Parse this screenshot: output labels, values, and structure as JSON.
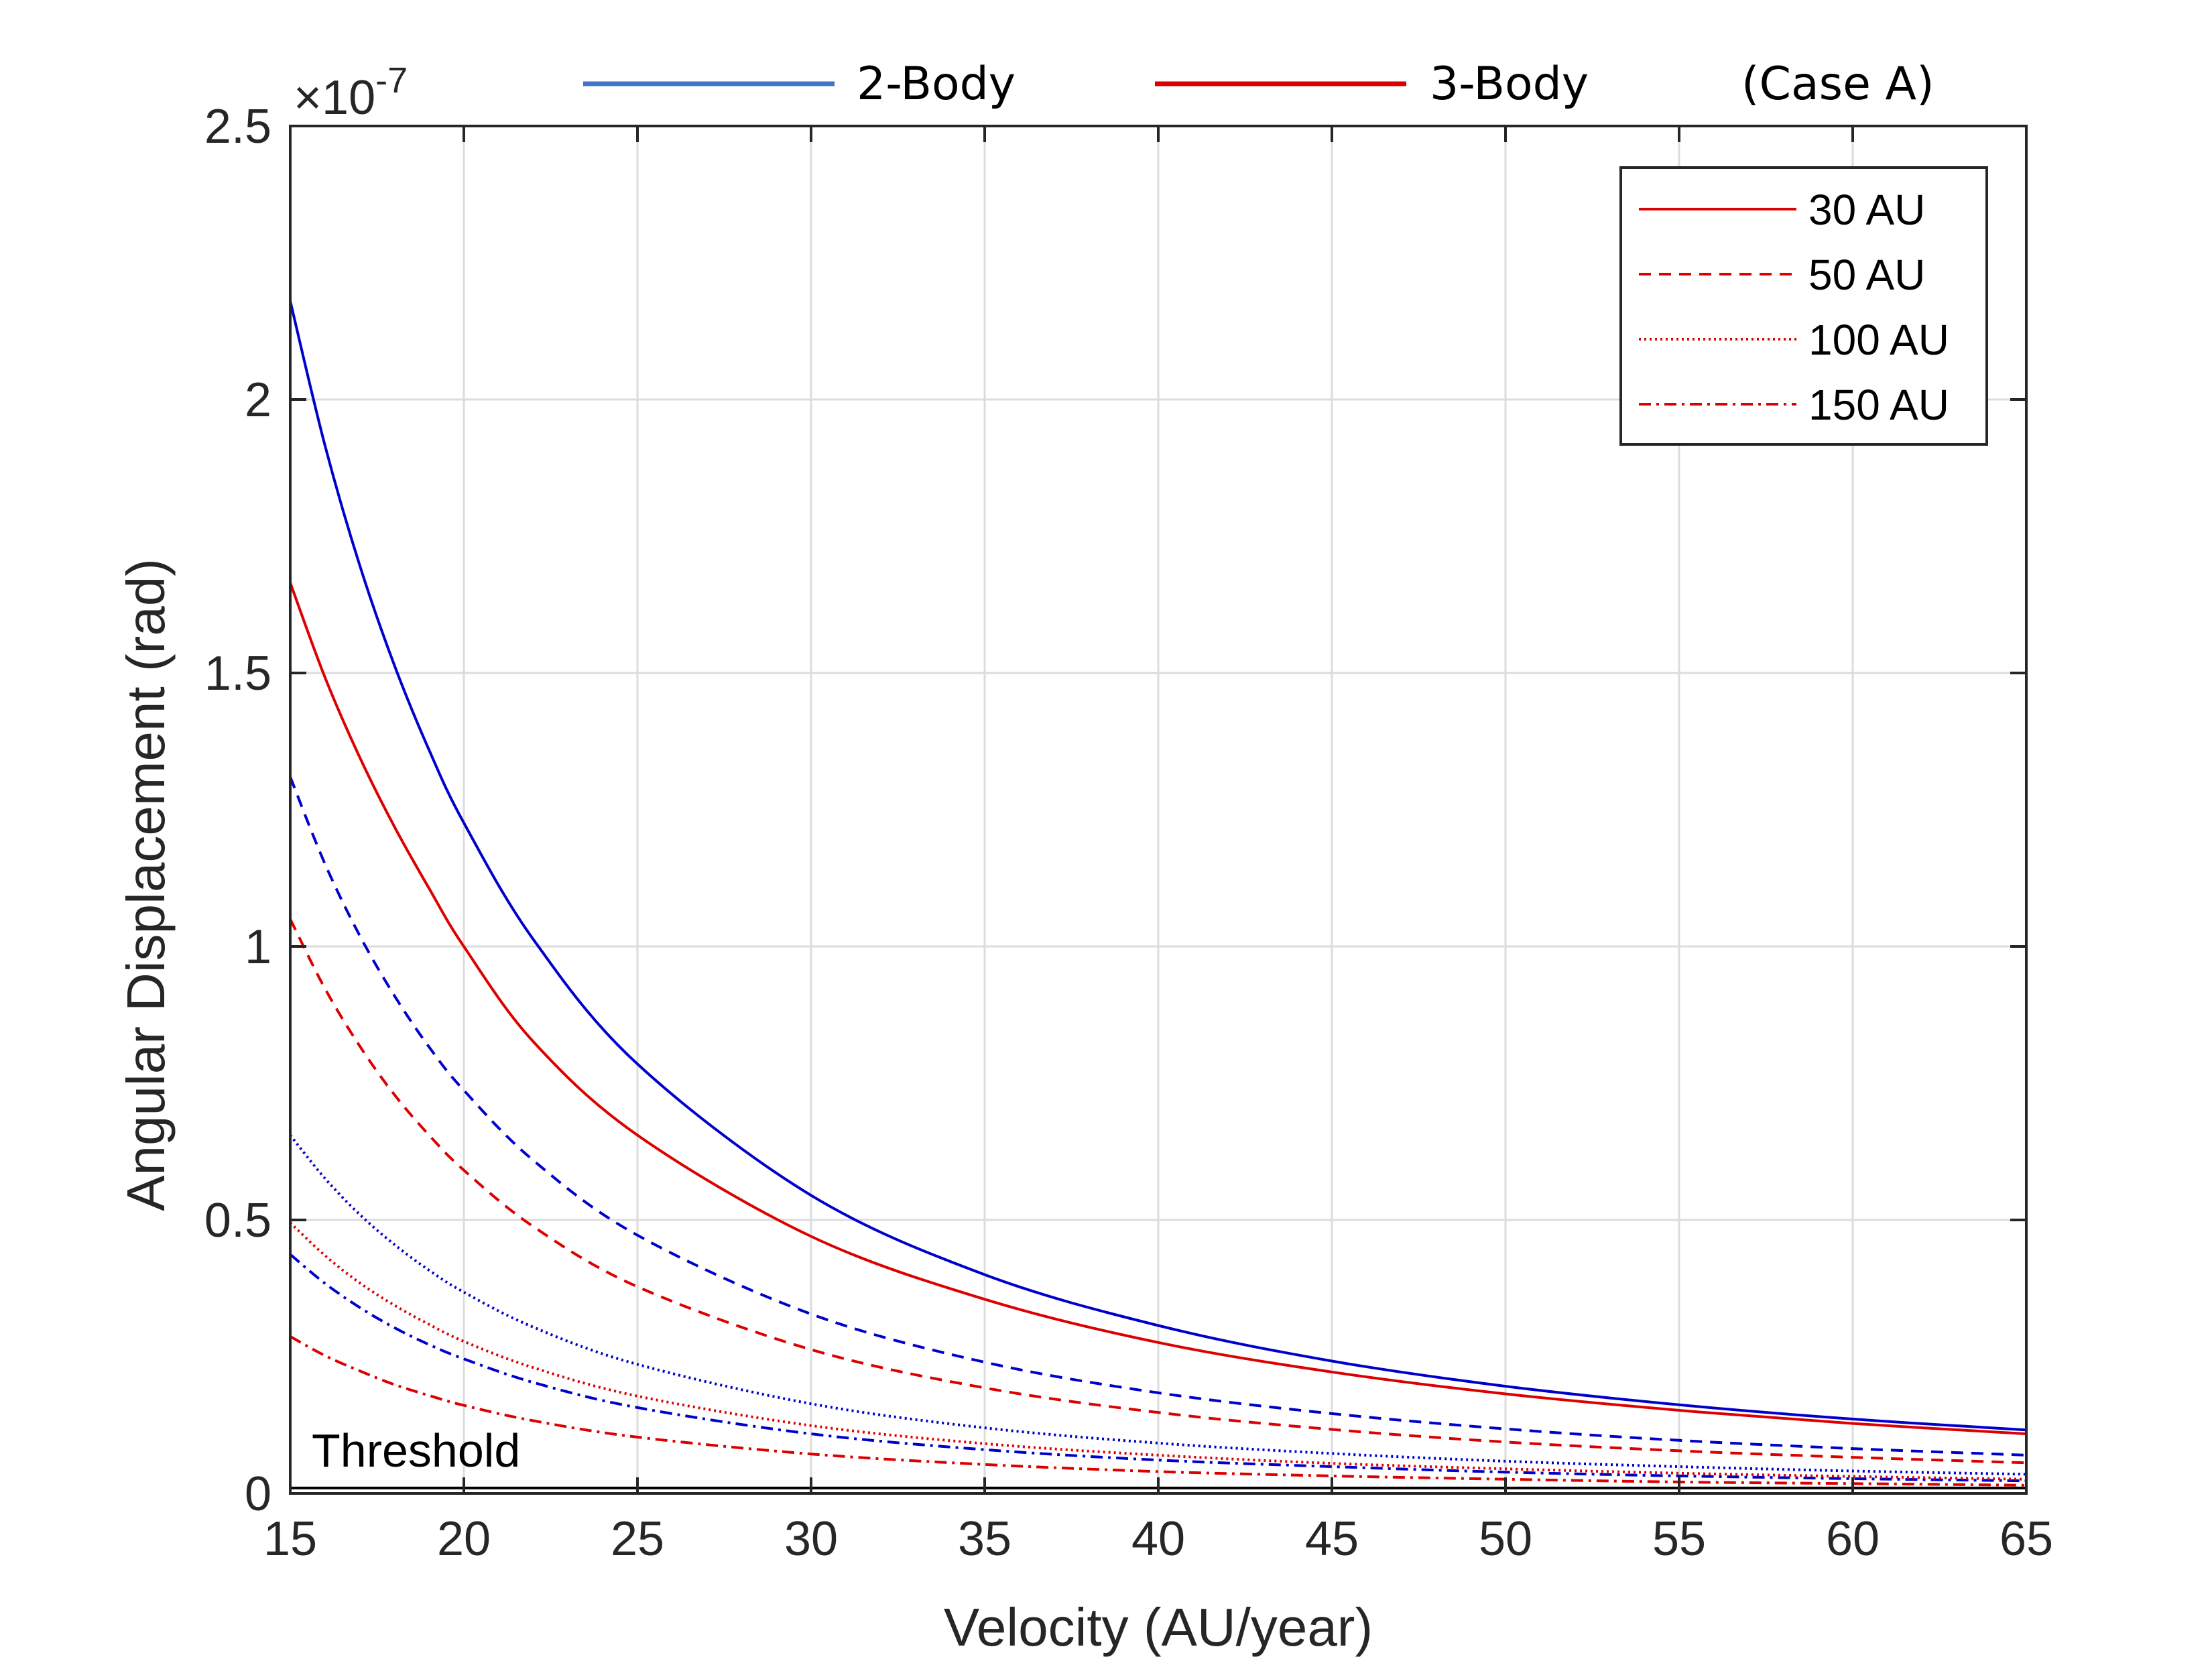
{
  "chart_data": {
    "type": "line",
    "title": "",
    "xlabel": "Velocity (AU/year)",
    "ylabel": "Angular Displacement (rad)",
    "xlim": [
      15,
      65
    ],
    "ylim": [
      0,
      2.5
    ],
    "y_exponent_base": "10",
    "y_exponent_power": "-7",
    "x_ticks": [
      15,
      20,
      25,
      30,
      35,
      40,
      45,
      50,
      55,
      60,
      65
    ],
    "x_tick_labels": [
      "15",
      "20",
      "25",
      "30",
      "35",
      "40",
      "45",
      "50",
      "55",
      "60",
      "65"
    ],
    "y_ticks": [
      0,
      0.5,
      1,
      1.5,
      2,
      2.5
    ],
    "y_tick_labels": [
      "0",
      "0.5",
      "1",
      "1.5",
      "2",
      "2.5"
    ],
    "grid": true,
    "legend_position": "top-right",
    "x": [
      15,
      16,
      17,
      18,
      19,
      20,
      22,
      25,
      30,
      35,
      40,
      45,
      50,
      55,
      60,
      65
    ],
    "series": [
      {
        "name": "2-Body 30 AU",
        "model": "2-Body",
        "distance": "30 AU",
        "color": "#0000cc",
        "dash": "solid",
        "values": [
          2.18,
          1.916,
          1.697,
          1.514,
          1.359,
          1.226,
          1.013,
          0.785,
          0.545,
          0.4,
          0.307,
          0.242,
          0.196,
          0.162,
          0.136,
          0.116
        ]
      },
      {
        "name": "2-Body 50 AU",
        "model": "2-Body",
        "distance": "50 AU",
        "color": "#0000cc",
        "dash": "dashed",
        "values": [
          1.31,
          1.151,
          1.02,
          0.91,
          0.816,
          0.737,
          0.609,
          0.472,
          0.328,
          0.24,
          0.184,
          0.146,
          0.118,
          0.097,
          0.082,
          0.07
        ]
      },
      {
        "name": "2-Body 100 AU",
        "model": "2-Body",
        "distance": "100 AU",
        "color": "#0000cc",
        "dash": "dotted",
        "values": [
          0.655,
          0.576,
          0.51,
          0.455,
          0.408,
          0.368,
          0.304,
          0.236,
          0.164,
          0.12,
          0.092,
          0.073,
          0.059,
          0.049,
          0.041,
          0.035
        ]
      },
      {
        "name": "2-Body 150 AU",
        "model": "2-Body",
        "distance": "150 AU",
        "color": "#0000cc",
        "dash": "dashdot",
        "values": [
          0.437,
          0.384,
          0.34,
          0.303,
          0.272,
          0.246,
          0.203,
          0.157,
          0.109,
          0.08,
          0.061,
          0.049,
          0.039,
          0.032,
          0.027,
          0.023
        ]
      },
      {
        "name": "3-Body 30 AU",
        "model": "3-Body",
        "distance": "30 AU",
        "color": "#dd0000",
        "dash": "solid",
        "values": [
          1.665,
          1.492,
          1.346,
          1.219,
          1.106,
          1.0,
          0.826,
          0.655,
          0.47,
          0.355,
          0.276,
          0.222,
          0.182,
          0.152,
          0.128,
          0.109
        ]
      },
      {
        "name": "3-Body 50 AU",
        "model": "3-Body",
        "distance": "50 AU",
        "color": "#dd0000",
        "dash": "dashed",
        "values": [
          1.05,
          0.923,
          0.818,
          0.729,
          0.655,
          0.591,
          0.488,
          0.378,
          0.263,
          0.193,
          0.148,
          0.117,
          0.094,
          0.078,
          0.066,
          0.056
        ]
      },
      {
        "name": "3-Body 100 AU",
        "model": "3-Body",
        "distance": "100 AU",
        "color": "#dd0000",
        "dash": "dotted",
        "values": [
          0.495,
          0.435,
          0.385,
          0.344,
          0.309,
          0.278,
          0.23,
          0.178,
          0.124,
          0.091,
          0.07,
          0.055,
          0.045,
          0.037,
          0.031,
          0.026
        ]
      },
      {
        "name": "3-Body 150 AU",
        "model": "3-Body",
        "distance": "150 AU",
        "color": "#dd0000",
        "dash": "dashdot",
        "values": [
          0.287,
          0.252,
          0.224,
          0.199,
          0.179,
          0.161,
          0.133,
          0.103,
          0.072,
          0.053,
          0.04,
          0.032,
          0.026,
          0.021,
          0.018,
          0.015
        ]
      }
    ],
    "threshold": {
      "label": "Threshold",
      "value": 0.01
    },
    "legend": {
      "entries": [
        {
          "label": "30 AU",
          "dash": "solid",
          "color": "#dd0000"
        },
        {
          "label": "50 AU",
          "dash": "dashed",
          "color": "#dd0000"
        },
        {
          "label": "100 AU",
          "dash": "dotted",
          "color": "#dd0000"
        },
        {
          "label": "150 AU",
          "dash": "dashdot",
          "color": "#dd0000"
        }
      ]
    },
    "top_legend": {
      "two_body_label": "2-Body",
      "two_body_color": "#4472c4",
      "three_body_label": "3-Body",
      "three_body_color": "#dd0000",
      "case_label": "(Case A)"
    }
  }
}
